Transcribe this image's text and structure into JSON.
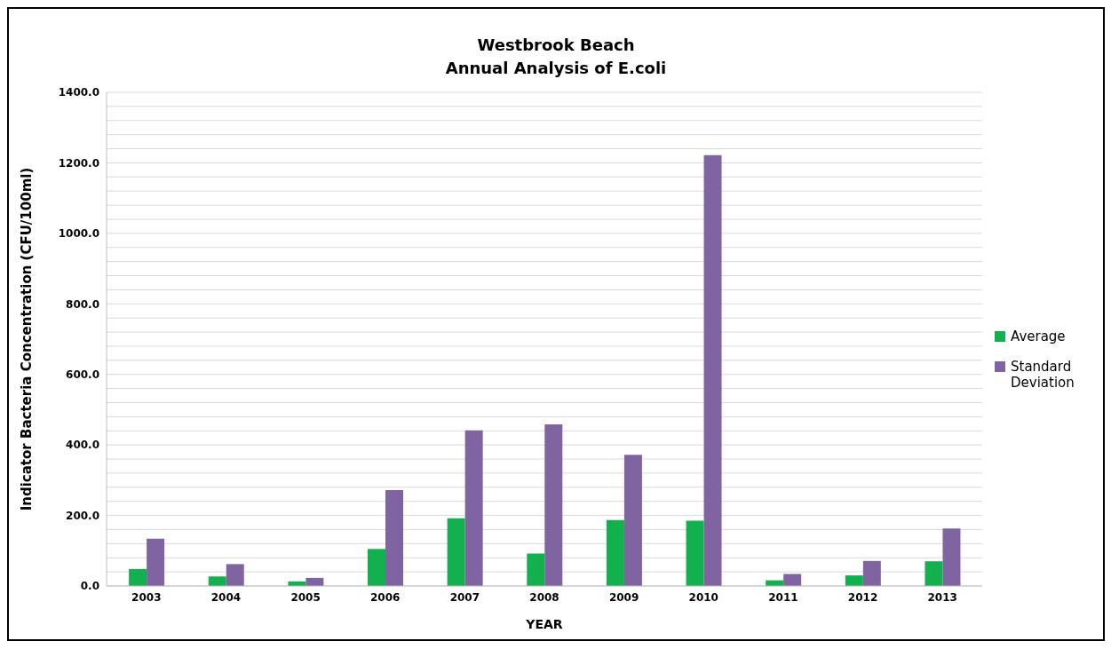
{
  "chart_data": {
    "type": "bar",
    "title": "Westbrook Beach",
    "subtitle": "Annual Analysis of E.coli",
    "xlabel": "YEAR",
    "ylabel": "Indicator Bacteria Concentration (CFU/100ml)",
    "categories": [
      "2003",
      "2004",
      "2005",
      "2006",
      "2007",
      "2008",
      "2009",
      "2010",
      "2011",
      "2012",
      "2013"
    ],
    "series": [
      {
        "name": "Average",
        "color": "#13b04f",
        "values": [
          48,
          27,
          13,
          105,
          192,
          92,
          187,
          185,
          16,
          30,
          70
        ]
      },
      {
        "name": "Standard Deviation",
        "color": "#8064a2",
        "values": [
          134,
          62,
          23,
          272,
          441,
          458,
          372,
          1222,
          34,
          71,
          163
        ]
      }
    ],
    "ylim": [
      0,
      1400
    ],
    "yticks": [
      {
        "value": 0,
        "label": "0.0"
      },
      {
        "value": 40,
        "label": null
      },
      {
        "value": 80,
        "label": null
      },
      {
        "value": 120,
        "label": null
      },
      {
        "value": 160,
        "label": null
      },
      {
        "value": 200,
        "label": "200.0"
      },
      {
        "value": 240,
        "label": null
      },
      {
        "value": 280,
        "label": null
      },
      {
        "value": 320,
        "label": null
      },
      {
        "value": 360,
        "label": null
      },
      {
        "value": 400,
        "label": "400.0"
      },
      {
        "value": 440,
        "label": null
      },
      {
        "value": 480,
        "label": null
      },
      {
        "value": 520,
        "label": null
      },
      {
        "value": 560,
        "label": null
      },
      {
        "value": 600,
        "label": "600.0"
      },
      {
        "value": 640,
        "label": null
      },
      {
        "value": 680,
        "label": null
      },
      {
        "value": 720,
        "label": null
      },
      {
        "value": 760,
        "label": null
      },
      {
        "value": 800,
        "label": "800.0"
      },
      {
        "value": 840,
        "label": null
      },
      {
        "value": 880,
        "label": null
      },
      {
        "value": 920,
        "label": null
      },
      {
        "value": 960,
        "label": null
      },
      {
        "value": 1000,
        "label": "1000.0"
      },
      {
        "value": 1040,
        "label": null
      },
      {
        "value": 1080,
        "label": null
      },
      {
        "value": 1120,
        "label": null
      },
      {
        "value": 1160,
        "label": null
      },
      {
        "value": 1200,
        "label": "1200.0"
      },
      {
        "value": 1240,
        "label": null
      },
      {
        "value": 1280,
        "label": null
      },
      {
        "value": 1320,
        "label": null
      },
      {
        "value": 1360,
        "label": null
      },
      {
        "value": 1400,
        "label": "1400.0"
      }
    ],
    "grid": "y",
    "legend": "right"
  }
}
